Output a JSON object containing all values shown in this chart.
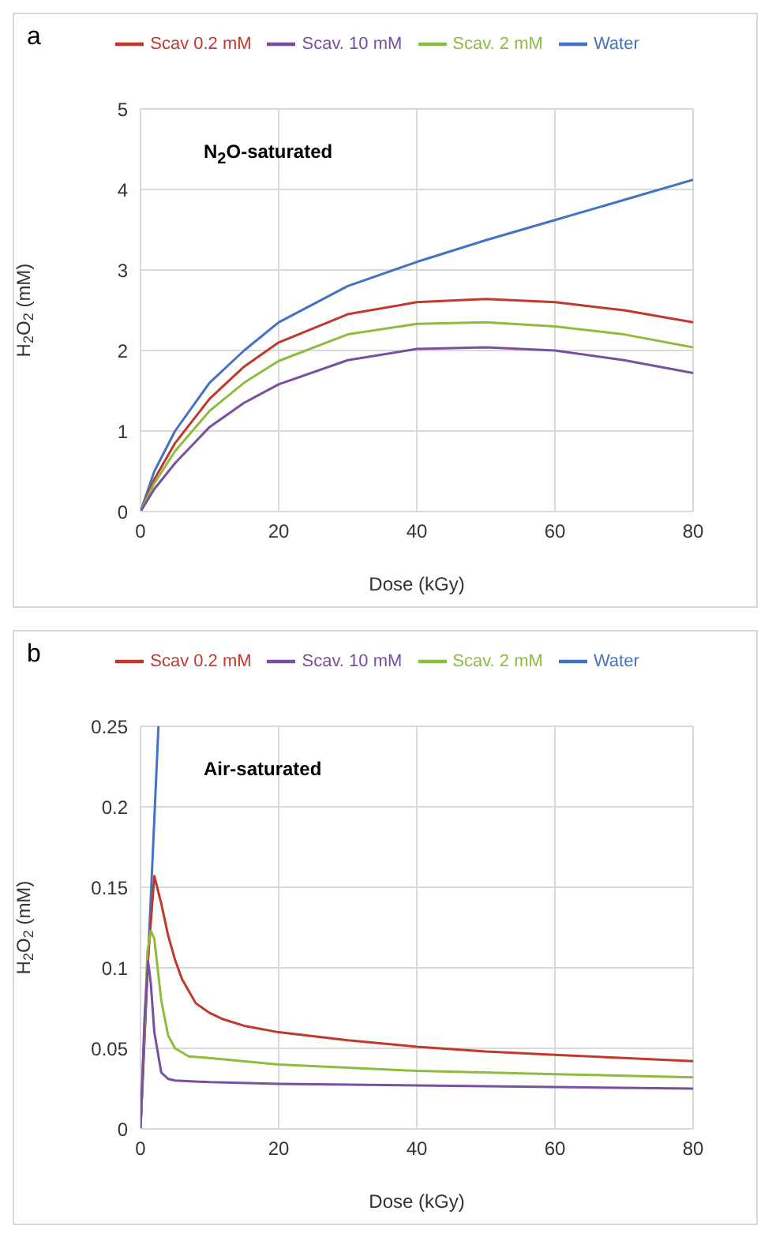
{
  "chart_data": [
    {
      "type": "line",
      "xlabel": "Dose (kGy)",
      "ylabel": "H$_{2}$O$_{2}$ (mM)",
      "annotations": [
        "a",
        "N$_{2}$O-saturated"
      ],
      "xlim": [
        0,
        80
      ],
      "xticks": [
        0,
        20,
        40,
        60,
        80
      ],
      "ylim": [
        0,
        5
      ],
      "yticks": [
        0,
        1,
        2,
        3,
        4,
        5
      ],
      "grid": true,
      "legend": "top",
      "marker": "none",
      "line_style": "solid",
      "series": [
        {
          "name": "Water",
          "color": "#4472c4",
          "x": [
            0,
            2,
            5,
            10,
            15,
            20,
            30,
            40,
            50,
            60,
            70,
            80
          ],
          "values": [
            0,
            0.5,
            1.0,
            1.6,
            2.0,
            2.35,
            2.8,
            3.1,
            3.37,
            3.62,
            3.87,
            4.12
          ]
        },
        {
          "name": "Scav 0.2 mM",
          "color": "#c0392b",
          "x": [
            0,
            2,
            5,
            10,
            15,
            20,
            30,
            40,
            50,
            60,
            70,
            80
          ],
          "values": [
            0,
            0.4,
            0.85,
            1.4,
            1.8,
            2.1,
            2.45,
            2.6,
            2.64,
            2.6,
            2.5,
            2.35
          ]
        },
        {
          "name": "Scav. 2 mM",
          "color": "#8cbd3f",
          "x": [
            0,
            2,
            5,
            10,
            15,
            20,
            30,
            40,
            50,
            60,
            70,
            80
          ],
          "values": [
            0,
            0.35,
            0.75,
            1.25,
            1.6,
            1.87,
            2.2,
            2.33,
            2.35,
            2.3,
            2.2,
            2.04
          ]
        },
        {
          "name": "Scav. 10 mM",
          "color": "#7a4fa0",
          "x": [
            0,
            2,
            5,
            10,
            15,
            20,
            30,
            40,
            50,
            60,
            70,
            80
          ],
          "values": [
            0,
            0.28,
            0.6,
            1.05,
            1.35,
            1.58,
            1.88,
            2.02,
            2.04,
            2.0,
            1.88,
            1.72
          ]
        }
      ]
    },
    {
      "type": "line",
      "xlabel": "Dose (kGy)",
      "ylabel": "H$_{2}$O$_{2}$  (mM)",
      "annotations": [
        "b",
        "Air-saturated"
      ],
      "xlim": [
        0,
        80
      ],
      "xticks": [
        0,
        20,
        40,
        60,
        80
      ],
      "ylim": [
        0,
        0.25
      ],
      "yticks": [
        0,
        0.05,
        0.1,
        0.15,
        0.2,
        0.25
      ],
      "grid": true,
      "legend": "top",
      "marker": "none",
      "line_style": "solid",
      "series": [
        {
          "name": "Water",
          "color": "#4472c4",
          "x": [
            0,
            1.3,
            2.6
          ],
          "values": [
            0,
            0.125,
            0.25
          ]
        },
        {
          "name": "Scav 0.2 mM",
          "color": "#c0392b",
          "x": [
            0,
            1,
            2,
            3,
            4,
            5,
            6,
            8,
            10,
            12,
            15,
            20,
            30,
            40,
            50,
            60,
            70,
            80
          ],
          "values": [
            0,
            0.1,
            0.157,
            0.14,
            0.12,
            0.105,
            0.093,
            0.078,
            0.072,
            0.068,
            0.064,
            0.06,
            0.055,
            0.051,
            0.048,
            0.046,
            0.044,
            0.042
          ]
        },
        {
          "name": "Scav. 2 mM",
          "color": "#8cbd3f",
          "x": [
            0,
            1,
            1.5,
            2,
            3,
            4,
            5,
            7,
            10,
            20,
            40,
            60,
            80
          ],
          "values": [
            0,
            0.11,
            0.123,
            0.118,
            0.08,
            0.058,
            0.05,
            0.045,
            0.044,
            0.04,
            0.036,
            0.034,
            0.032
          ]
        },
        {
          "name": "Scav. 10 mM",
          "color": "#7a4fa0",
          "x": [
            0,
            0.6,
            1.1,
            1.5,
            2,
            3,
            4,
            5,
            10,
            20,
            40,
            60,
            80
          ],
          "values": [
            0,
            0.07,
            0.104,
            0.09,
            0.06,
            0.035,
            0.031,
            0.03,
            0.029,
            0.028,
            0.027,
            0.026,
            0.025
          ]
        }
      ]
    }
  ]
}
